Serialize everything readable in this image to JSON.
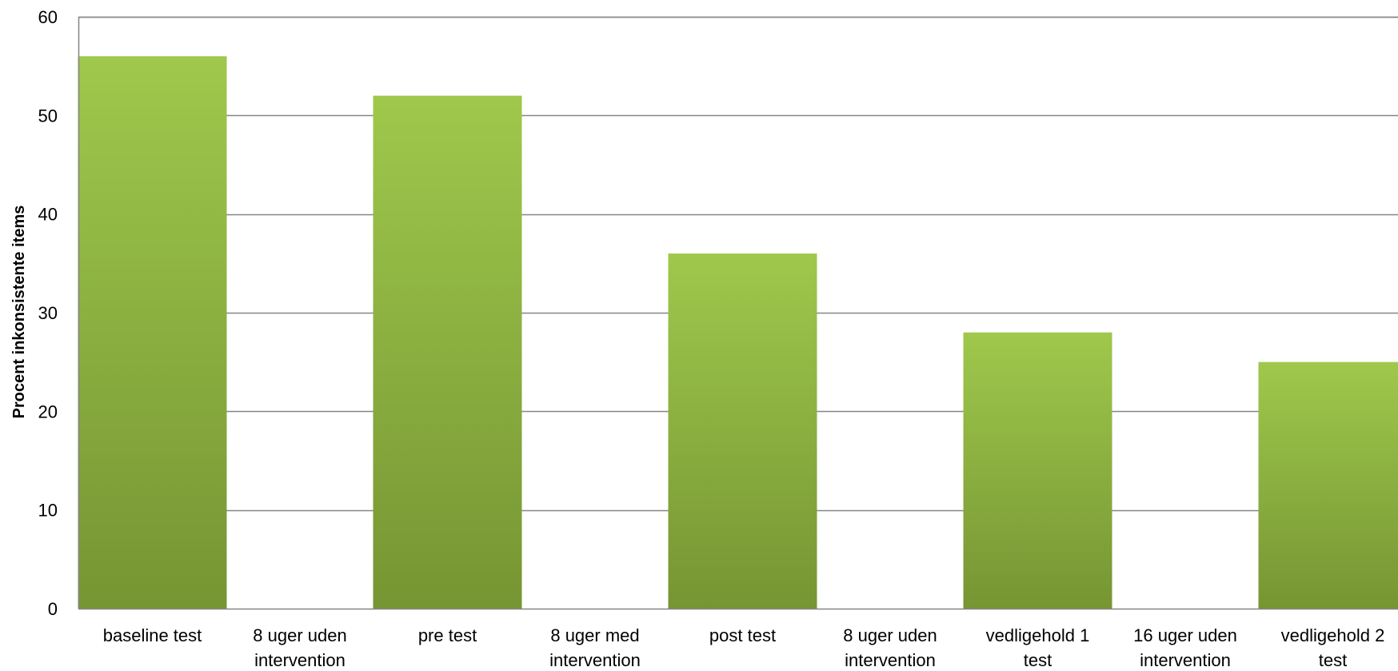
{
  "chart_data": {
    "type": "bar",
    "title": "",
    "xlabel": "",
    "ylabel": "Procent inkonsistente items",
    "ylim": [
      0,
      60
    ],
    "yticks": [
      0,
      10,
      20,
      30,
      40,
      50,
      60
    ],
    "grid": true,
    "legend": "none",
    "categories": [
      [
        "baseline test"
      ],
      [
        "8 uger uden",
        "intervention"
      ],
      [
        "pre test"
      ],
      [
        "8 uger med",
        "intervention"
      ],
      [
        "post test"
      ],
      [
        "8 uger uden",
        "intervention"
      ],
      [
        "vedligehold 1",
        "test"
      ],
      [
        "16 uger uden",
        "intervention"
      ],
      [
        "vedligehold 2",
        "test"
      ]
    ],
    "values": [
      56,
      null,
      52,
      null,
      36,
      null,
      28,
      null,
      25
    ]
  },
  "colors": {
    "bar_top": "#9fc84c",
    "bar_bottom": "#769533",
    "gridline": "#868686",
    "axis": "#868686"
  }
}
